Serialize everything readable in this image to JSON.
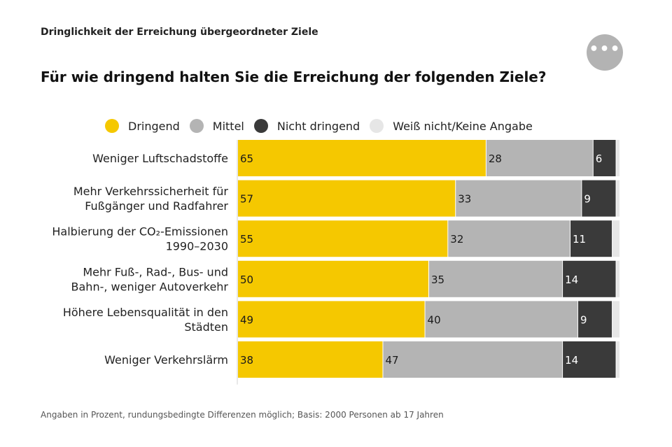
{
  "header": {
    "kicker": "Dringlichkeit der Erreichung übergeordneter Ziele",
    "menu_icon": "more-horizontal-icon",
    "menu_label": "•••"
  },
  "chart_data": {
    "type": "bar",
    "orientation": "horizontal-stacked",
    "title": "Für wie dringend halten Sie die Erreichung der folgenden Ziele?",
    "legend_position": "top",
    "categories": [
      [
        "Weniger Luftschadstoffe"
      ],
      [
        "Mehr Verkehrssicherheit für",
        "Fußgänger und Radfahrer"
      ],
      [
        "Halbierung der CO₂-Emissionen",
        "1990–2030"
      ],
      [
        "Mehr Fuß-, Rad-, Bus- und",
        "Bahn-, weniger Autoverkehr"
      ],
      [
        "Höhere Lebensqualität in den",
        "Städten"
      ],
      [
        "Weniger Verkehrslärm"
      ]
    ],
    "series": [
      {
        "name": "Dringend",
        "color": "#f5c800",
        "label_color": "#1a1a1a",
        "values": [
          65,
          57,
          55,
          50,
          49,
          38
        ]
      },
      {
        "name": "Mittel",
        "color": "#b4b4b4",
        "label_color": "#1a1a1a",
        "values": [
          28,
          33,
          32,
          35,
          40,
          47
        ]
      },
      {
        "name": "Nicht dringend",
        "color": "#3a3a3a",
        "label_color": "#ffffff",
        "values": [
          6,
          9,
          11,
          14,
          9,
          14
        ]
      },
      {
        "name": "Weiß nicht/Keine Angabe",
        "color": "#e6e6e6",
        "label_color": "#1a1a1a",
        "values": [
          1,
          1,
          2,
          1,
          2,
          1
        ],
        "show_labels": false
      }
    ],
    "xlim": [
      0,
      100
    ],
    "grid": false
  },
  "footer": {
    "note": "Angaben in Prozent, rundungsbedingte Differenzen möglich; Basis: 2000 Personen ab 17 Jahren"
  }
}
